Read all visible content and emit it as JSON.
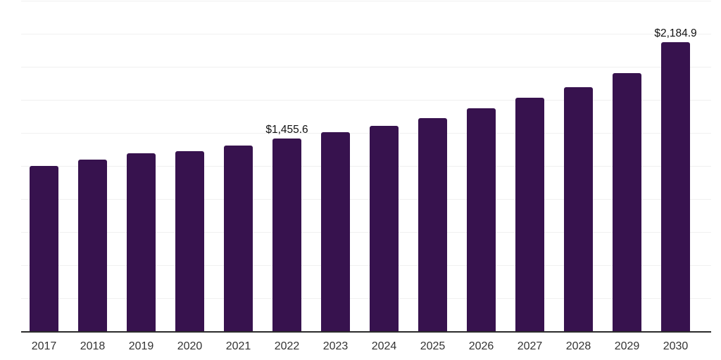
{
  "chart_data": {
    "type": "bar",
    "title": "",
    "xlabel": "",
    "ylabel": "",
    "categories": [
      "2017",
      "2018",
      "2019",
      "2020",
      "2021",
      "2022",
      "2023",
      "2024",
      "2025",
      "2026",
      "2027",
      "2028",
      "2029",
      "2030"
    ],
    "values": [
      1251,
      1298,
      1346,
      1361,
      1403,
      1455.6,
      1505,
      1553,
      1610,
      1684,
      1764,
      1844,
      1950,
      2184.9
    ],
    "point_labels": [
      "",
      "",
      "",
      "",
      "",
      "$1,455.6",
      "",
      "",
      "",
      "",
      "",
      "",
      "",
      "$2,184.9"
    ],
    "ylim": [
      0,
      2500
    ],
    "grid_step": 250,
    "grid": "horizontal light lines, no y-axis tick labels",
    "legend": "none",
    "bar_color": "#37124e",
    "axis_line_color": "#2b2b2b",
    "gridline_color": "#f0f0f0",
    "x_label_color": "#333333",
    "value_label_color": "#111111"
  }
}
